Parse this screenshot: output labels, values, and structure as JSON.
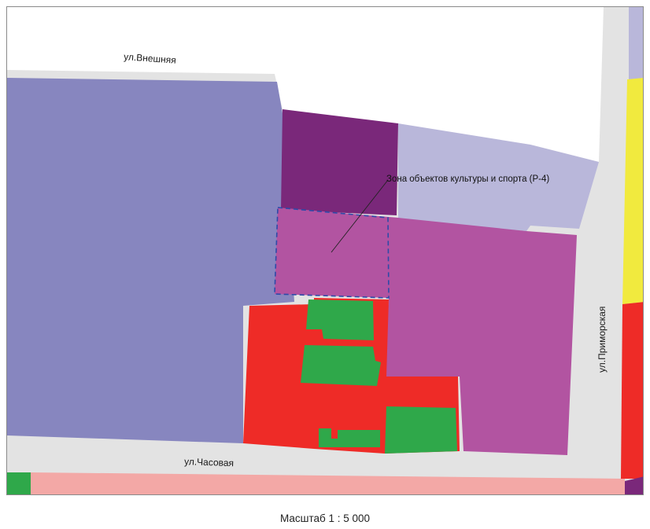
{
  "map": {
    "streets": {
      "vneshnyaya": "ул.Внешняя",
      "chasovaya": "ул.Часовая",
      "primorskaya": "ул.Приморская"
    },
    "zone_callout": "Зона объектов культуры и спорта (Р-4)",
    "scale": "Масштаб 1 : 5 000"
  },
  "colors": {
    "road": "#e3e3e3",
    "zone_blue_violet": "#8786bf",
    "zone_dark_purple": "#7a287a",
    "zone_light_lavender": "#b9b7da",
    "zone_magenta": "#b254a1",
    "zone_red": "#ee2b27",
    "zone_green": "#2fa84a",
    "zone_yellow": "#f1ea3e",
    "zone_pink": "#f3a8a6",
    "selection_outline": "#2e4aa8"
  }
}
